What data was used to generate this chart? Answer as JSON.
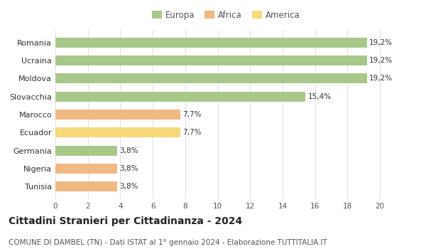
{
  "categories": [
    "Tunisia",
    "Nigeria",
    "Germania",
    "Ecuador",
    "Marocco",
    "Slovacchia",
    "Moldova",
    "Ucraina",
    "Romania"
  ],
  "values": [
    3.8,
    3.8,
    3.8,
    7.7,
    7.7,
    15.4,
    19.2,
    19.2,
    19.2
  ],
  "labels": [
    "3,8%",
    "3,8%",
    "3,8%",
    "7,7%",
    "7,7%",
    "15,4%",
    "19,2%",
    "19,2%",
    "19,2%"
  ],
  "colors": [
    "#f0b882",
    "#f0b882",
    "#a8c88a",
    "#f5d97a",
    "#f0b882",
    "#a8c88a",
    "#a8c88a",
    "#a8c88a",
    "#a8c88a"
  ],
  "legend": {
    "Europa": "#a8c88a",
    "Africa": "#f0b882",
    "America": "#f5d97a"
  },
  "xlim": [
    0,
    21
  ],
  "xticks": [
    0,
    2,
    4,
    6,
    8,
    10,
    12,
    14,
    16,
    18,
    20
  ],
  "title": "Cittadini Stranieri per Cittadinanza - 2024",
  "subtitle": "COMUNE DI DAMBEL (TN) - Dati ISTAT al 1° gennaio 2024 - Elaborazione TUTTITALIA.IT",
  "background_color": "#ffffff",
  "grid_color": "#e0e0e0",
  "bar_height": 0.55,
  "label_fontsize": 7.5,
  "ytick_fontsize": 8,
  "xtick_fontsize": 7.5,
  "title_fontsize": 10,
  "subtitle_fontsize": 7.5,
  "legend_fontsize": 8.5
}
